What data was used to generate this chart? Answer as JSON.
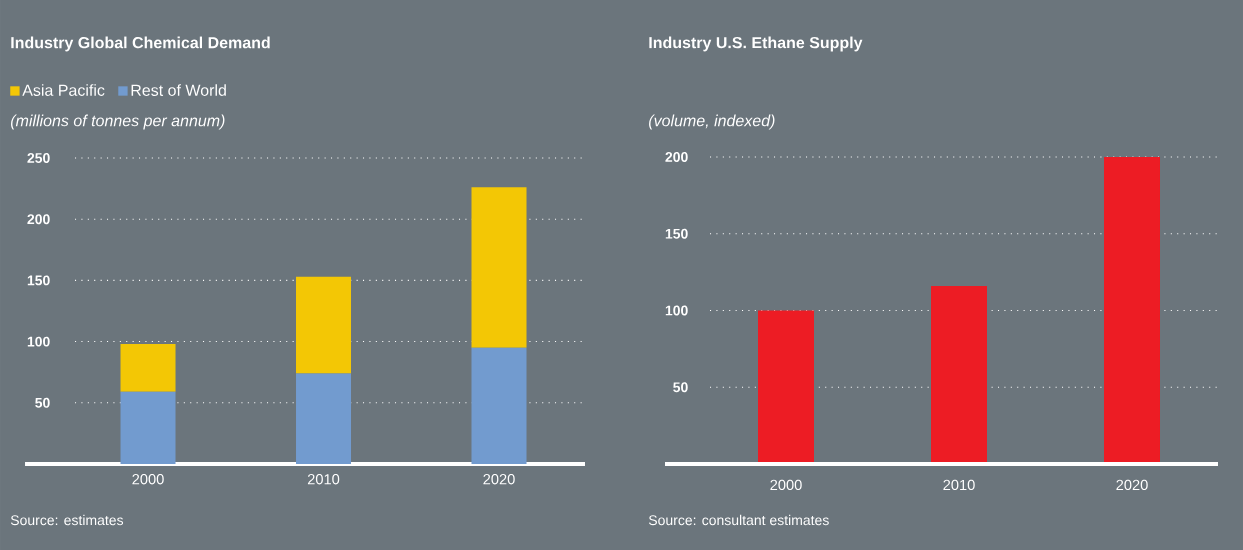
{
  "chart_data": [
    {
      "type": "bar",
      "title": "Industry Global Chemical Demand",
      "ylabel": "(millions of tonnes per annum)",
      "categories": [
        "2000",
        "2010",
        "2020"
      ],
      "stacked": true,
      "series": [
        {
          "name": "Rest of World",
          "color": "#729bcf",
          "values": [
            59,
            74,
            95
          ]
        },
        {
          "name": "Asia Pacific",
          "color": "#f3c705",
          "values": [
            39,
            79,
            131
          ]
        }
      ],
      "ylim": [
        0,
        250
      ],
      "yticks": [
        50,
        100,
        150,
        200,
        250
      ],
      "grid": "y",
      "legend": "top left",
      "annotations": [
        "Source: estimates"
      ]
    },
    {
      "type": "bar",
      "title": "Industry U.S. Ethane Supply",
      "ylabel": "(volume, indexed)",
      "categories": [
        "2000",
        "2010",
        "2020"
      ],
      "values": [
        100,
        116,
        200
      ],
      "color": "#ed1c24",
      "ylim": [
        0,
        200
      ],
      "yticks": [
        50,
        100,
        150,
        200
      ],
      "grid": "y",
      "annotations": [
        "Source: consultant estimates"
      ]
    }
  ]
}
